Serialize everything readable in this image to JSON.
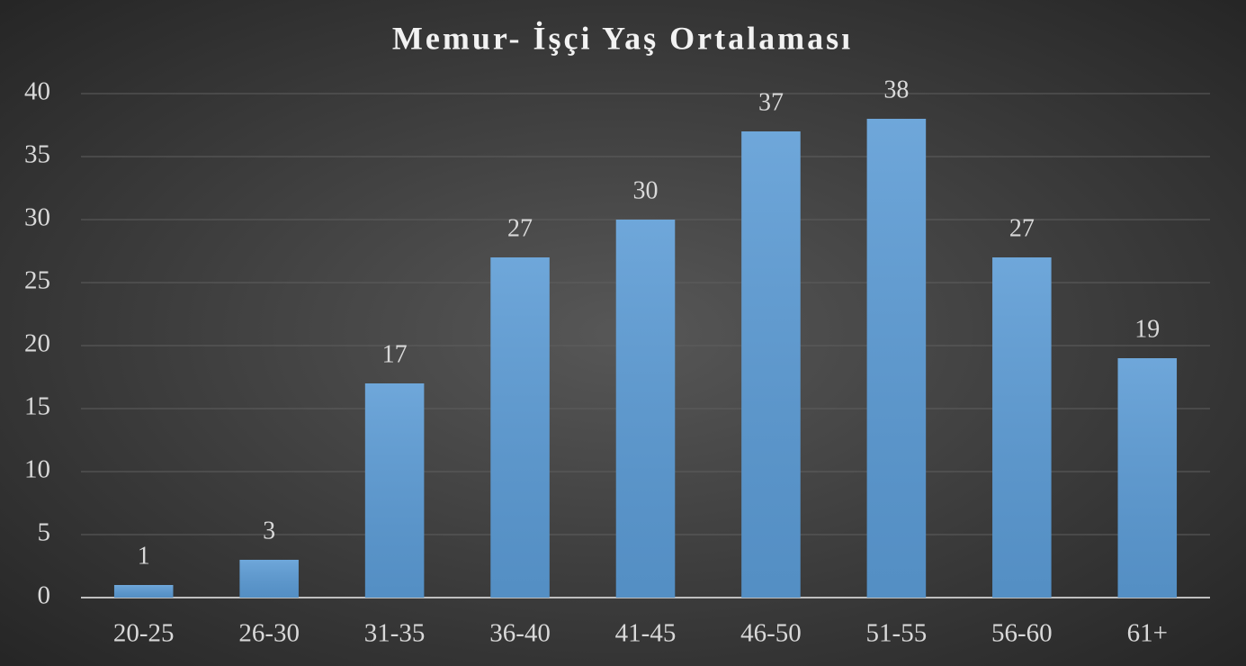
{
  "chart_data": {
    "type": "bar",
    "title": "Memur- İşçi Yaş Ortalaması",
    "categories": [
      "20-25",
      "26-30",
      "31-35",
      "36-40",
      "41-45",
      "46-50",
      "51-55",
      "56-60",
      "61+"
    ],
    "values": [
      1,
      3,
      17,
      27,
      30,
      37,
      38,
      27,
      19
    ],
    "color": "#5b9bd5",
    "ylim": [
      0,
      40
    ],
    "yticks": [
      0,
      5,
      10,
      15,
      20,
      25,
      30,
      35,
      40
    ],
    "grid": true
  }
}
